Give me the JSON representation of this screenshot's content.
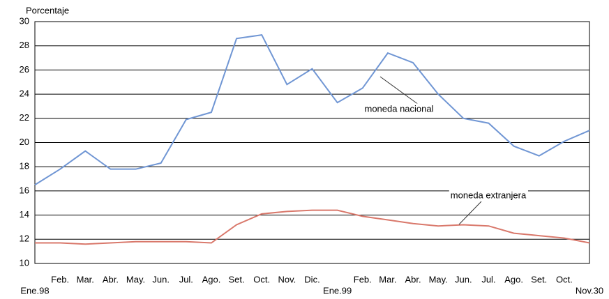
{
  "chart_data": {
    "type": "line",
    "y_label": "Porcentaje",
    "categories": [
      "Ene.98",
      "Feb.",
      "Mar.",
      "Abr.",
      "May.",
      "Jun.",
      "Jul.",
      "Ago.",
      "Set.",
      "Oct.",
      "Nov.",
      "Dic.",
      "Ene.99",
      "Feb.",
      "Mar.",
      "Abr.",
      "May.",
      "Jun.",
      "Jul.",
      "Ago.",
      "Set.",
      "Oct.",
      "Nov.30"
    ],
    "series": [
      {
        "name": "moneda nacional",
        "color": "#7096d4",
        "values": [
          16.5,
          17.8,
          19.3,
          17.8,
          17.8,
          18.3,
          21.9,
          22.5,
          28.6,
          28.9,
          24.8,
          26.1,
          23.3,
          24.5,
          27.4,
          26.6,
          24.0,
          22.0,
          21.6,
          19.7,
          18.9,
          20.1,
          21.0
        ]
      },
      {
        "name": "moneda extranjera",
        "color": "#d9786b",
        "values": [
          11.7,
          11.7,
          11.6,
          11.7,
          11.8,
          11.8,
          11.8,
          11.7,
          13.2,
          14.1,
          14.3,
          14.4,
          14.4,
          13.9,
          13.6,
          13.3,
          13.1,
          13.2,
          13.1,
          12.5,
          12.3,
          12.1,
          11.7
        ]
      }
    ],
    "ylim": [
      10,
      30
    ],
    "yticks": [
      10,
      12,
      14,
      16,
      18,
      20,
      22,
      24,
      26,
      28,
      30
    ],
    "grid": true
  }
}
